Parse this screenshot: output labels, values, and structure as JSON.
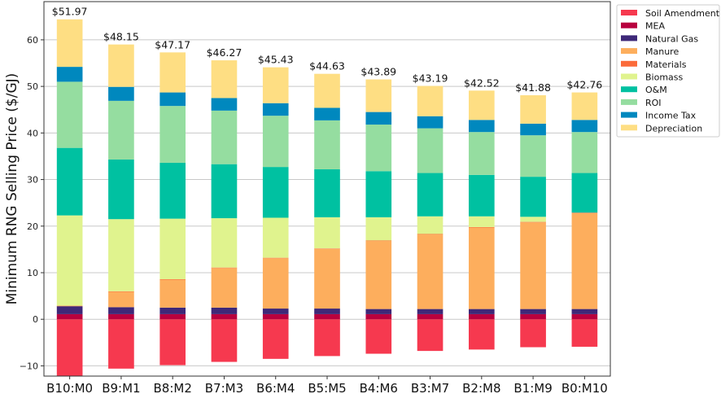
{
  "chart_data": {
    "type": "bar",
    "stacked": true,
    "title": "",
    "xlabel": "",
    "ylabel": "Minimum RNG Selling Price ($/GJ)",
    "ylim": [
      -12.2,
      68.2
    ],
    "yticks": [
      -10,
      0,
      10,
      20,
      30,
      40,
      50,
      60
    ],
    "grid": "horizontal",
    "legend_position": "outside-top-right",
    "categories": [
      "B10:M0",
      "B9:M1",
      "B8:M2",
      "B7:M3",
      "B6:M4",
      "B5:M5",
      "B4:M6",
      "B3:M7",
      "B2:M8",
      "B1:M9",
      "B0:M10"
    ],
    "totals": [
      "$51.97",
      "$48.15",
      "$47.17",
      "$46.27",
      "$45.43",
      "$44.63",
      "$43.89",
      "$43.19",
      "$42.52",
      "$41.88",
      "$42.76"
    ],
    "series": [
      {
        "name": "Soil Amendment",
        "color": "#f6394f",
        "values": [
          -12.5,
          -10.6,
          -9.85,
          -9.15,
          -8.5,
          -7.9,
          -7.4,
          -6.8,
          -6.5,
          -6.0,
          -5.9
        ]
      },
      {
        "name": "MEA",
        "color": "#b8003e",
        "values": [
          1.1,
          1.1,
          1.1,
          1.1,
          1.1,
          1.1,
          1.1,
          1.1,
          1.1,
          1.1,
          1.1
        ]
      },
      {
        "name": "Natural Gas",
        "color": "#3e2878",
        "values": [
          1.7,
          1.5,
          1.4,
          1.4,
          1.2,
          1.2,
          1.1,
          1.1,
          1.1,
          1.1,
          1.1
        ]
      },
      {
        "name": "Manure",
        "color": "#fdae5d",
        "values": [
          0,
          3.3,
          6.0,
          8.5,
          10.8,
          12.8,
          14.6,
          16.0,
          17.5,
          18.6,
          20.6
        ]
      },
      {
        "name": "Materials",
        "color": "#fb6b3a",
        "values": [
          0.1,
          0.1,
          0.1,
          0.1,
          0.1,
          0.1,
          0.1,
          0.1,
          0.1,
          0.1,
          0.1
        ]
      },
      {
        "name": "Biomass",
        "color": "#e0f38e",
        "values": [
          19.4,
          15.5,
          13.0,
          10.6,
          8.6,
          6.7,
          5.0,
          3.8,
          2.3,
          1.1,
          0
        ]
      },
      {
        "name": "O&M",
        "color": "#00c1a1",
        "values": [
          14.5,
          12.8,
          12.0,
          11.6,
          10.9,
          10.3,
          9.9,
          9.3,
          8.9,
          8.6,
          8.5
        ]
      },
      {
        "name": "ROI",
        "color": "#95dda0",
        "values": [
          14.2,
          12.6,
          12.2,
          11.5,
          11.0,
          10.5,
          10.0,
          9.6,
          9.2,
          8.9,
          8.8
        ]
      },
      {
        "name": "Income Tax",
        "color": "#0088be",
        "values": [
          3.2,
          3.0,
          2.9,
          2.7,
          2.7,
          2.7,
          2.7,
          2.6,
          2.6,
          2.5,
          2.6
        ]
      },
      {
        "name": "Depreciation",
        "color": "#fede83",
        "values": [
          10.2,
          9.1,
          8.6,
          8.1,
          7.7,
          7.3,
          7.0,
          6.5,
          6.3,
          6.1,
          5.9
        ]
      }
    ]
  }
}
